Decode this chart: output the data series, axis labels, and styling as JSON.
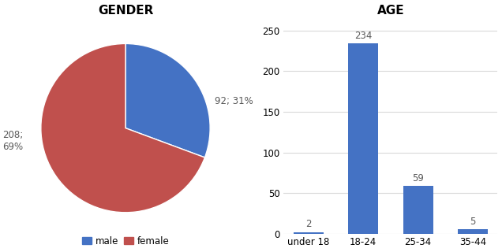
{
  "pie_values": [
    92,
    208
  ],
  "pie_labels_text": [
    "92; 31%",
    "208;\n69%"
  ],
  "pie_colors": [
    "#4472C4",
    "#C0504D"
  ],
  "pie_legend_labels": [
    "male",
    "female"
  ],
  "pie_title": "GENDER",
  "pie_startangle": 90,
  "bar_categories": [
    "under 18",
    "18-24",
    "25-34",
    "35-44"
  ],
  "bar_values": [
    2,
    234,
    59,
    5
  ],
  "bar_color": "#4472C4",
  "bar_title": "AGE",
  "bar_ylim": [
    0,
    260
  ],
  "bar_yticks": [
    0,
    50,
    100,
    150,
    200,
    250
  ],
  "background_color": "#ffffff",
  "title_fontsize": 11,
  "label_fontsize": 8.5,
  "annotation_fontsize": 8.5,
  "text_color": "#595959"
}
